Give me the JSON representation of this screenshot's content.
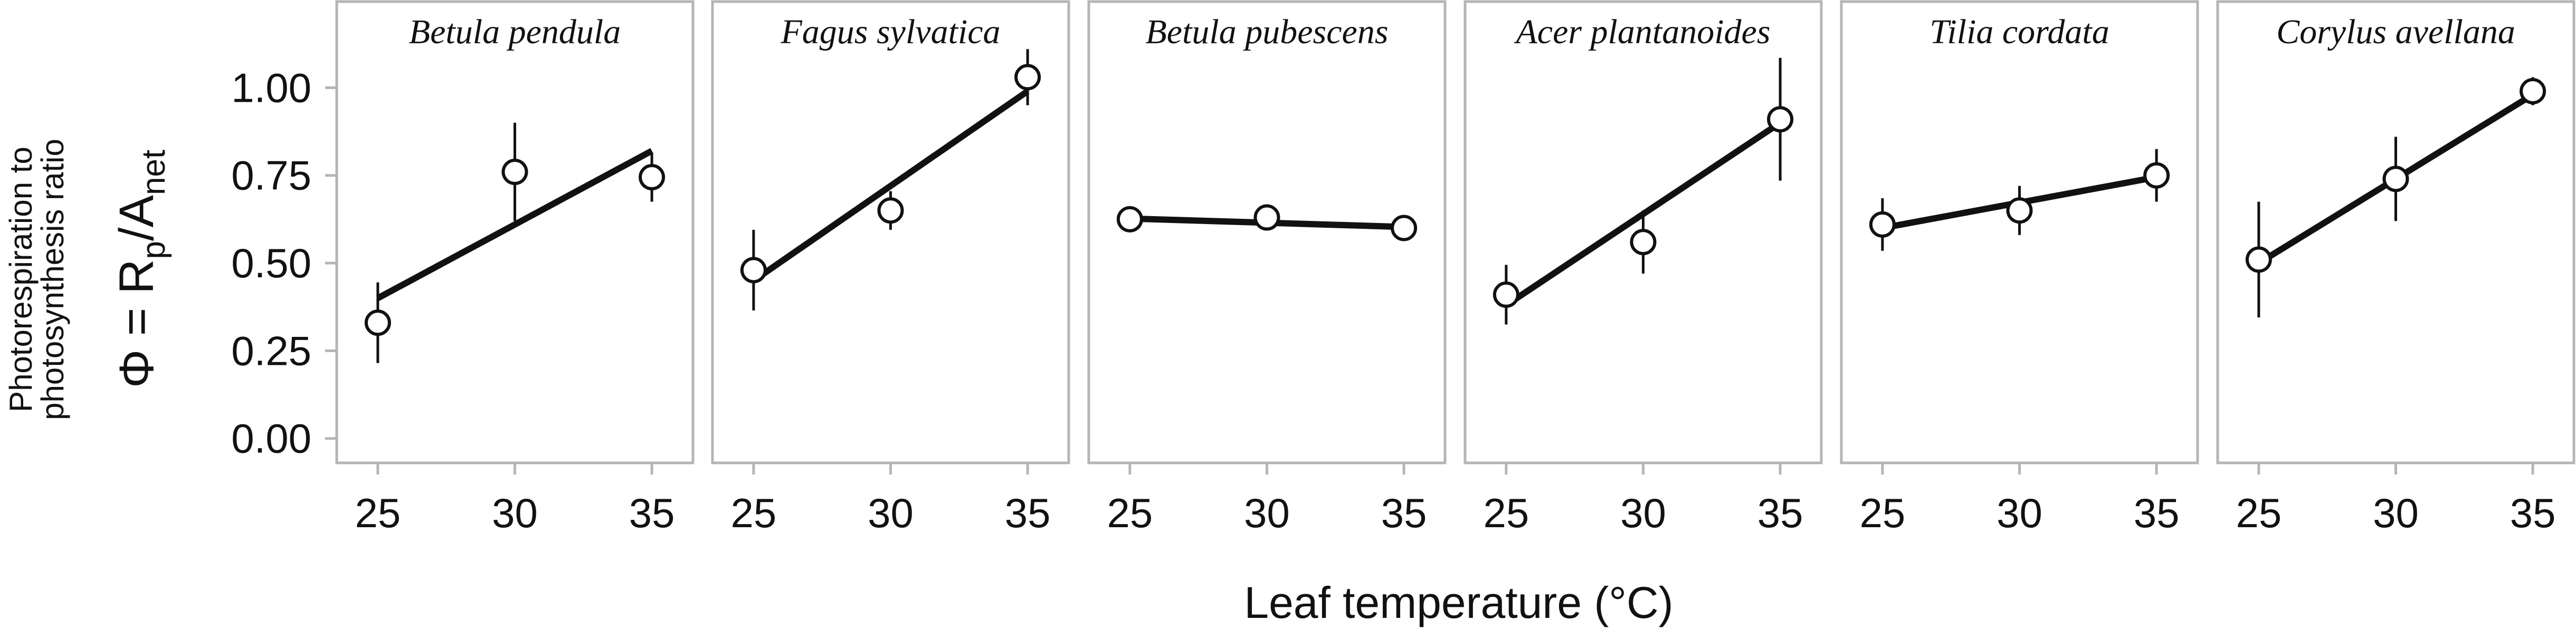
{
  "figure": {
    "ylabel_line1": "Photorespiration to",
    "ylabel_line2": "photosynthesis ratio",
    "ylabel_formula": {
      "main": "Φ = R",
      "sub1": "p",
      "slash": "/A",
      "sub2": "net"
    },
    "xlabel": "Leaf temperature (°C)"
  },
  "colors": {
    "line": "#111111",
    "frame": "#b5b5b5",
    "marker_fill": "#ffffff"
  },
  "chart_data": {
    "type": "scatter",
    "facets": true,
    "x_ticks": [
      25,
      30,
      35
    ],
    "y_ticks": [
      0.0,
      0.25,
      0.5,
      0.75,
      1.0
    ],
    "y_tick_labels": [
      "0.00",
      "0.25",
      "0.50",
      "0.75",
      "1.00"
    ],
    "xlim": [
      23.5,
      36.5
    ],
    "ylim": [
      -0.05,
      1.25
    ],
    "xlabel": "Leaf temperature (°C)",
    "ylabel": "Photorespiration to photosynthesis ratio",
    "grid": false,
    "panels": [
      {
        "title": "Betula pendula",
        "x": [
          25,
          30,
          35
        ],
        "y": [
          0.33,
          0.76,
          0.745
        ],
        "err": [
          0.115,
          0.14,
          0.07
        ],
        "fit": [
          [
            25,
            0.4
          ],
          [
            35,
            0.82
          ]
        ]
      },
      {
        "title": "Fagus sylvatica",
        "x": [
          25,
          30,
          35
        ],
        "y": [
          0.48,
          0.65,
          1.03
        ],
        "err": [
          0.115,
          0.055,
          0.08
        ],
        "fit": [
          [
            25,
            0.45
          ],
          [
            35,
            0.99
          ]
        ]
      },
      {
        "title": "Betula pubescens",
        "x": [
          25,
          30,
          35
        ],
        "y": [
          0.625,
          0.63,
          0.6
        ],
        "err": [
          0.02,
          0.02,
          0.03
        ],
        "fit": [
          [
            25,
            0.627
          ],
          [
            35,
            0.603
          ]
        ]
      },
      {
        "title": "Acer plantanoides",
        "x": [
          25,
          30,
          35
        ],
        "y": [
          0.41,
          0.56,
          0.91
        ],
        "err": [
          0.085,
          0.09,
          0.175
        ],
        "fit": [
          [
            25,
            0.38
          ],
          [
            35,
            0.9
          ]
        ]
      },
      {
        "title": "Tilia cordata",
        "x": [
          25,
          30,
          35
        ],
        "y": [
          0.61,
          0.65,
          0.75
        ],
        "err": [
          0.075,
          0.07,
          0.075
        ],
        "fit": [
          [
            25,
            0.6
          ],
          [
            35,
            0.745
          ]
        ]
      },
      {
        "title": "Corylus avellana",
        "x": [
          25,
          30,
          35
        ],
        "y": [
          0.51,
          0.74,
          0.99
        ],
        "err": [
          0.165,
          0.12,
          0.04
        ],
        "fit": [
          [
            25,
            0.5
          ],
          [
            35,
            0.98
          ]
        ]
      }
    ]
  }
}
